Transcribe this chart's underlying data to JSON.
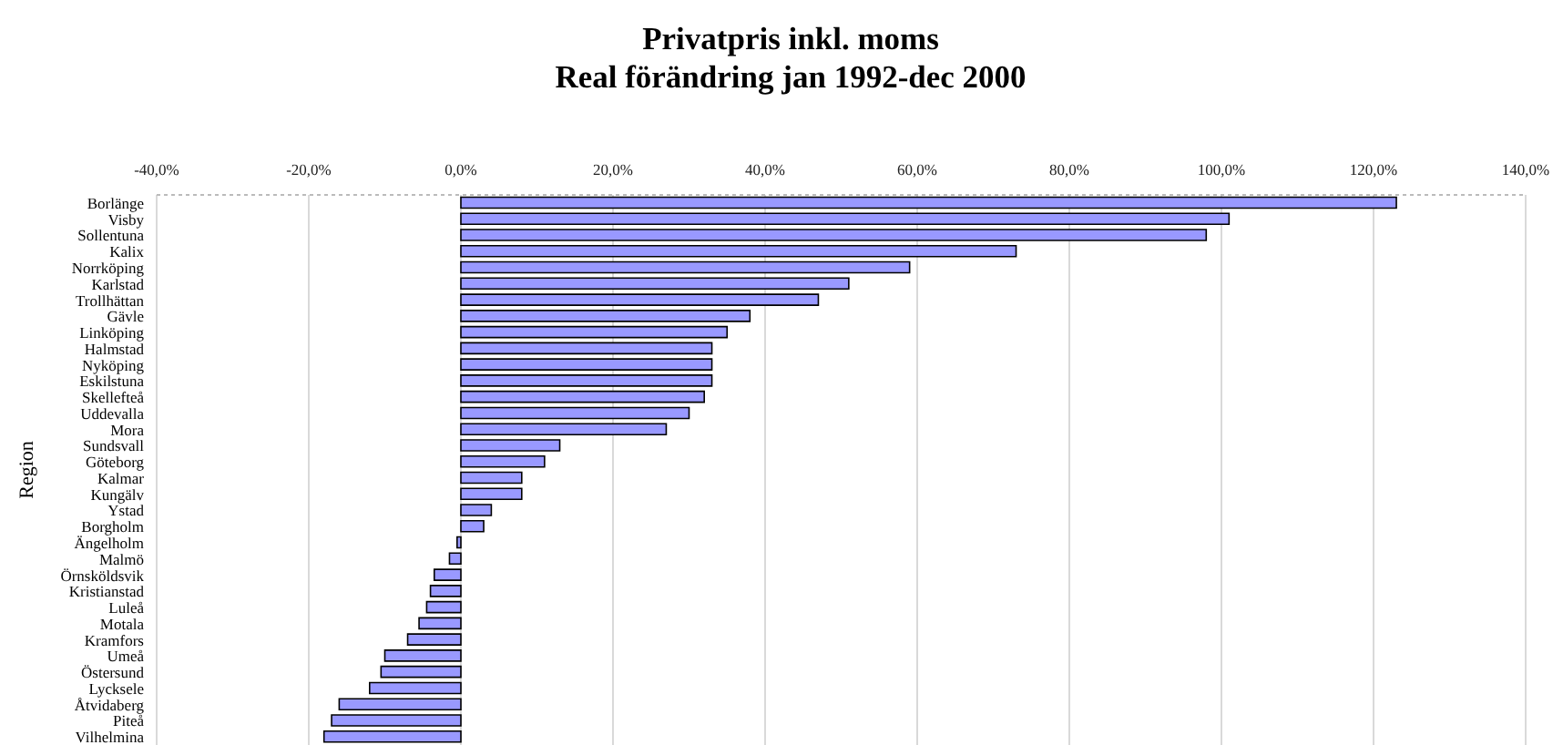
{
  "chart_data": {
    "type": "bar",
    "orientation": "horizontal",
    "title": "Privatpris inkl. moms",
    "subtitle": "Real förändring jan 1992-dec 2000",
    "ylabel": "Region",
    "categories": [
      "Borlänge",
      "Visby",
      "Sollentuna",
      "Kalix",
      "Norrköping",
      "Karlstad",
      "Trollhättan",
      "Gävle",
      "Linköping",
      "Halmstad",
      "Nyköping",
      "Eskilstuna",
      "Skellefteå",
      "Uddevalla",
      "Mora",
      "Sundsvall",
      "Göteborg",
      "Kalmar",
      "Kungälv",
      "Ystad",
      "Borgholm",
      "Ängelholm",
      "Malmö",
      "Örnsköldsvik",
      "Kristianstad",
      "Luleå",
      "Motala",
      "Kramfors",
      "Umeå",
      "Östersund",
      "Lycksele",
      "Åtvidaberg",
      "Piteå",
      "Vilhelmina"
    ],
    "values": [
      123,
      101,
      98,
      73,
      59,
      51,
      47,
      38,
      35,
      33,
      33,
      33,
      32,
      30,
      27,
      13,
      11,
      8,
      8,
      4,
      3,
      -0.5,
      -1.5,
      -3.5,
      -4,
      -4.5,
      -5.5,
      -7,
      -10,
      -10.5,
      -12,
      -16,
      -17,
      -18
    ],
    "color": "#9999ff",
    "xlim": [
      -40,
      140
    ],
    "xticks": [
      {
        "value": -40,
        "label": "-40,0%"
      },
      {
        "value": -20,
        "label": "-20,0%"
      },
      {
        "value": 0,
        "label": "0,0%"
      },
      {
        "value": 20,
        "label": "20,0%"
      },
      {
        "value": 40,
        "label": "40,0%"
      },
      {
        "value": 60,
        "label": "60,0%"
      },
      {
        "value": 80,
        "label": "80,0%"
      },
      {
        "value": 100,
        "label": "100,0%"
      },
      {
        "value": 120,
        "label": "120,0%"
      },
      {
        "value": 140,
        "label": "140,0%"
      }
    ],
    "grid": "x"
  }
}
